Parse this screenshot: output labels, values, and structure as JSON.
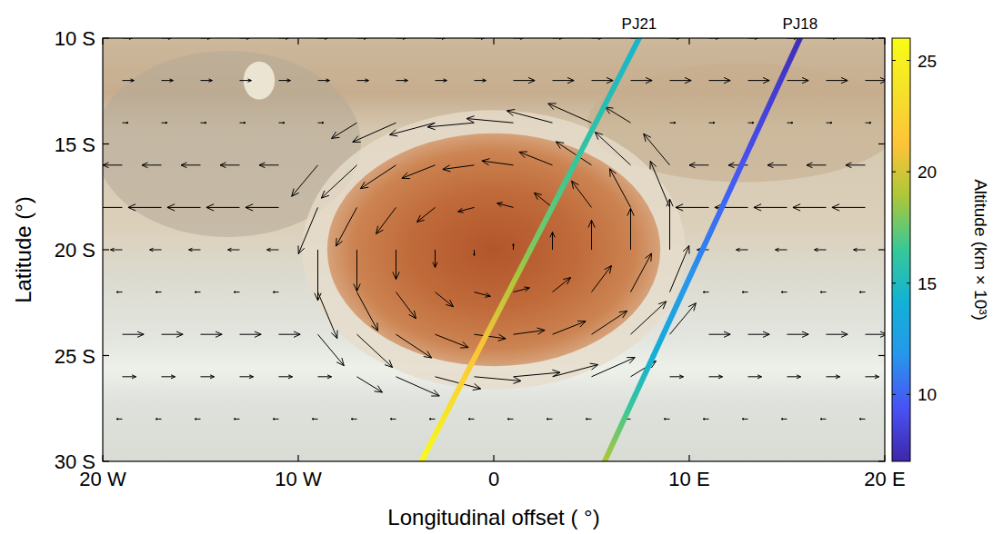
{
  "chart_data": {
    "type": "quiver",
    "xlabel": "Longitudinal offset ( °)",
    "ylabel": "Latitude (°)",
    "xlim": [
      -20,
      20
    ],
    "ylim": [
      -30,
      -10
    ],
    "xticks": [
      {
        "value": -20,
        "label": "20 W"
      },
      {
        "value": -10,
        "label": "10 W"
      },
      0,
      {
        "value": 10,
        "label": "10 E"
      },
      {
        "value": 20,
        "label": "20 E"
      }
    ],
    "yticks": [
      {
        "value": -30,
        "label": "30 S"
      },
      {
        "value": -25,
        "label": "25 S"
      },
      {
        "value": -20,
        "label": "20 S"
      },
      {
        "value": -15,
        "label": "15 S"
      },
      {
        "value": -10,
        "label": "10 S"
      }
    ],
    "color": "#000000",
    "vectors": {
      "lon": [
        -19,
        -17,
        -15,
        -13,
        -11,
        -9,
        -7,
        -5,
        -3,
        -1,
        1,
        3,
        5,
        7,
        9,
        11,
        13,
        15,
        17,
        19
      ],
      "lat": [
        -10,
        -12,
        -14,
        -16,
        -18,
        -20,
        -22,
        -24,
        -26,
        -28
      ],
      "u": [
        [
          0.5,
          0.5,
          0.5,
          0.5,
          0.5,
          0.5,
          0.5,
          0.5,
          0.5,
          0.5,
          0.5,
          0.5,
          0.5,
          0.5,
          0.5,
          0.5,
          0.5,
          0.5,
          0.5,
          0.5
        ],
        [
          0.6,
          0.6,
          0.6,
          0.6,
          0.6,
          0.6,
          0.6,
          0.6,
          0.6,
          0.6,
          1.1,
          1.1,
          1.1,
          1.1,
          1.1,
          1.1,
          1.1,
          1.1,
          1.1,
          1.1
        ],
        [
          0.3,
          0.3,
          0.3,
          0.3,
          0.3,
          0.3,
          -1.3,
          -2.22,
          -2.33,
          -2.39,
          -2.39,
          -2.33,
          -2.22,
          -1.3,
          0.3,
          0.3,
          0.3,
          0.3,
          0.3,
          0.3
        ],
        [
          -1,
          -1,
          -1,
          -1,
          -1,
          -1.34,
          -1.82,
          -1.82,
          -1.7,
          -1.61,
          -1.61,
          -1.7,
          -1.82,
          -1.82,
          -1.34,
          -1,
          -1,
          -1,
          -1,
          -1
        ],
        [
          -1.7,
          -1.7,
          -1.7,
          -1.7,
          -1.7,
          -0.99,
          -1.07,
          -1.02,
          -0.93,
          -0.83,
          -0.83,
          -0.93,
          -1.02,
          -1.07,
          -0.99,
          -1.7,
          -1.7,
          -1.7,
          -1.7,
          -1.7
        ],
        [
          -0.6,
          -0.6,
          -0.6,
          -0.6,
          -0.6,
          0,
          0,
          0,
          0,
          0,
          0,
          0,
          0,
          0,
          0,
          -0.6,
          -0.6,
          -0.6,
          -0.6,
          -0.6
        ],
        [
          -0.3,
          -0.3,
          -0.3,
          -0.3,
          -0.3,
          0.99,
          1.07,
          1.02,
          0.93,
          0.83,
          0.83,
          0.93,
          1.02,
          1.07,
          0.99,
          -0.3,
          -0.3,
          -0.3,
          -0.3,
          -0.3
        ],
        [
          1.1,
          1.1,
          1.1,
          1.1,
          1.1,
          1.34,
          1.82,
          1.82,
          1.7,
          1.61,
          1.61,
          1.7,
          1.82,
          1.82,
          1.34,
          1.1,
          1.1,
          1.1,
          1.1,
          1.1
        ],
        [
          0.7,
          0.7,
          0.7,
          0.7,
          0.7,
          0.7,
          1.3,
          2.22,
          2.33,
          2.39,
          2.39,
          2.33,
          2.22,
          1.3,
          0.7,
          0.7,
          0.7,
          0.7,
          0.7,
          0.7
        ],
        [
          -0.3,
          -0.3,
          -0.3,
          -0.3,
          -0.3,
          -0.3,
          -0.3,
          -0.3,
          -0.3,
          -0.3,
          -0.3,
          -0.3,
          -0.3,
          -0.3,
          -0.3,
          -0.3,
          -0.3,
          -0.3,
          -0.3,
          -0.3
        ]
      ],
      "v": [
        [
          0,
          0,
          0,
          0,
          0,
          0,
          0,
          0,
          0,
          0,
          0,
          0,
          0,
          0,
          0,
          0,
          0,
          0,
          0,
          0
        ],
        [
          0,
          0,
          0,
          0,
          0,
          0,
          0,
          0,
          0,
          0,
          0,
          0,
          0,
          0,
          0,
          0,
          0,
          0,
          0,
          0
        ],
        [
          0,
          0,
          0,
          0,
          0,
          0,
          -0.74,
          -0.91,
          -0.57,
          -0.2,
          0.2,
          0.57,
          0.91,
          0.74,
          0,
          0,
          0,
          0,
          0,
          0
        ],
        [
          0,
          0,
          0,
          0,
          0,
          -1.48,
          -1.56,
          -1.11,
          -0.62,
          -0.2,
          0.2,
          0.62,
          1.11,
          1.56,
          1.48,
          0,
          0,
          0,
          0,
          0
        ],
        [
          0,
          0,
          0,
          0,
          0,
          -2.19,
          -1.83,
          -1.25,
          -0.69,
          -0.2,
          0.2,
          0.69,
          1.25,
          1.83,
          2.19,
          0,
          0,
          0,
          0,
          0
        ],
        [
          0,
          0,
          0,
          0,
          0,
          -2.4,
          -1.96,
          -1.4,
          -0.84,
          -0.28,
          0.28,
          0.84,
          1.4,
          1.96,
          2.4,
          0,
          0,
          0,
          0,
          0
        ],
        [
          0,
          0,
          0,
          0,
          0,
          -2.19,
          -1.83,
          -1.25,
          -0.69,
          -0.2,
          0.2,
          0.69,
          1.25,
          1.83,
          2.19,
          0,
          0,
          0,
          0,
          0
        ],
        [
          0,
          0,
          0,
          0,
          0,
          -1.48,
          -1.56,
          -1.11,
          -0.62,
          -0.2,
          0.2,
          0.62,
          1.11,
          1.56,
          1.48,
          0,
          0,
          0,
          0,
          0
        ],
        [
          0,
          0,
          0,
          0,
          0,
          0,
          -0.74,
          -0.91,
          -0.57,
          -0.2,
          0.2,
          0.57,
          0.91,
          0.74,
          0,
          0,
          0,
          0,
          0,
          0
        ],
        [
          0,
          0,
          0,
          0,
          0,
          0,
          0,
          0,
          0,
          0,
          0,
          0,
          0,
          0,
          0,
          0,
          0,
          0,
          0,
          0
        ]
      ]
    },
    "series": [
      {
        "name": "PJ21",
        "lon": [
          7.44,
          4.66,
          1.87,
          -0.92,
          -3.7
        ],
        "lat": [
          -10,
          -15,
          -20,
          -25,
          -30
        ],
        "altitude": [
          14.5,
          16,
          18,
          21.5,
          26
        ]
      },
      {
        "name": "PJ18",
        "lon": [
          15.67,
          13.17,
          10.67,
          8.17,
          5.67
        ],
        "lat": [
          -10,
          -15,
          -20,
          -25,
          -30
        ],
        "altitude": [
          7.5,
          9,
          11,
          14,
          19
        ]
      }
    ],
    "colorbar": {
      "label": "Altitude (km × 10³)",
      "lim": [
        7,
        26
      ],
      "ticks": [
        10,
        15,
        20,
        25
      ]
    }
  }
}
